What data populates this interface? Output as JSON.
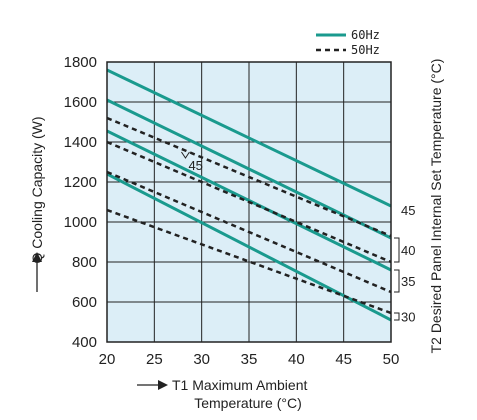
{
  "chart_data": {
    "type": "line",
    "xlabel_line1": "T1 Maximum Ambient",
    "xlabel_line2": "Temperature (°C)",
    "ylabel": "Q Cooling Capacity (W)",
    "right_label": "T2 Desired Panel Internal Set Temperature (°C)",
    "xlim": [
      20,
      50
    ],
    "ylim": [
      400,
      1800
    ],
    "x_ticks": [
      20,
      25,
      30,
      35,
      40,
      45,
      50
    ],
    "y_ticks": [
      400,
      600,
      800,
      1000,
      1200,
      1400,
      1600,
      1800
    ],
    "x_tick_labels": [
      "20",
      "25",
      "30",
      "35",
      "40",
      "45",
      "50"
    ],
    "y_tick_labels": [
      "400",
      "600",
      "800",
      "1000",
      "1200",
      "1400",
      "1600",
      "1800"
    ],
    "grid": true,
    "legend": {
      "position": "top-right",
      "entries": [
        {
          "label": "60Hz",
          "style": "solid",
          "color": "#1a9a8e"
        },
        {
          "label": "50Hz",
          "style": "dashed",
          "color": "#222222"
        }
      ]
    },
    "series": [
      {
        "group": "60Hz",
        "setpoint": "45",
        "x": [
          20,
          50
        ],
        "y": [
          1760,
          1080
        ]
      },
      {
        "group": "60Hz",
        "setpoint": "40",
        "x": [
          20,
          50
        ],
        "y": [
          1610,
          920
        ]
      },
      {
        "group": "60Hz",
        "setpoint": "35",
        "x": [
          20,
          50
        ],
        "y": [
          1455,
          760
        ]
      },
      {
        "group": "60Hz",
        "setpoint": "30",
        "x": [
          20,
          50
        ],
        "y": [
          1240,
          510
        ]
      },
      {
        "group": "50Hz",
        "setpoint": "45",
        "x": [
          20,
          50
        ],
        "y": [
          1520,
          930
        ]
      },
      {
        "group": "50Hz",
        "setpoint": "40",
        "x": [
          20,
          50
        ],
        "y": [
          1400,
          800
        ]
      },
      {
        "group": "50Hz",
        "setpoint": "35",
        "x": [
          20,
          50
        ],
        "y": [
          1250,
          650
        ]
      },
      {
        "group": "50Hz",
        "setpoint": "30",
        "x": [
          20,
          50
        ],
        "y": [
          1060,
          545
        ]
      }
    ],
    "side_labels": [
      {
        "text": "45",
        "y": 1060
      },
      {
        "text": "40",
        "y": 850
      },
      {
        "text": "35",
        "y": 700
      },
      {
        "text": "30",
        "y": 530
      }
    ],
    "inline_annotation": {
      "text": "45",
      "x": 28.5,
      "y": 1300
    },
    "colors": {
      "plot_bg": "#dceef7",
      "line_60hz": "#1a9a8e",
      "line_50hz": "#222222"
    }
  }
}
